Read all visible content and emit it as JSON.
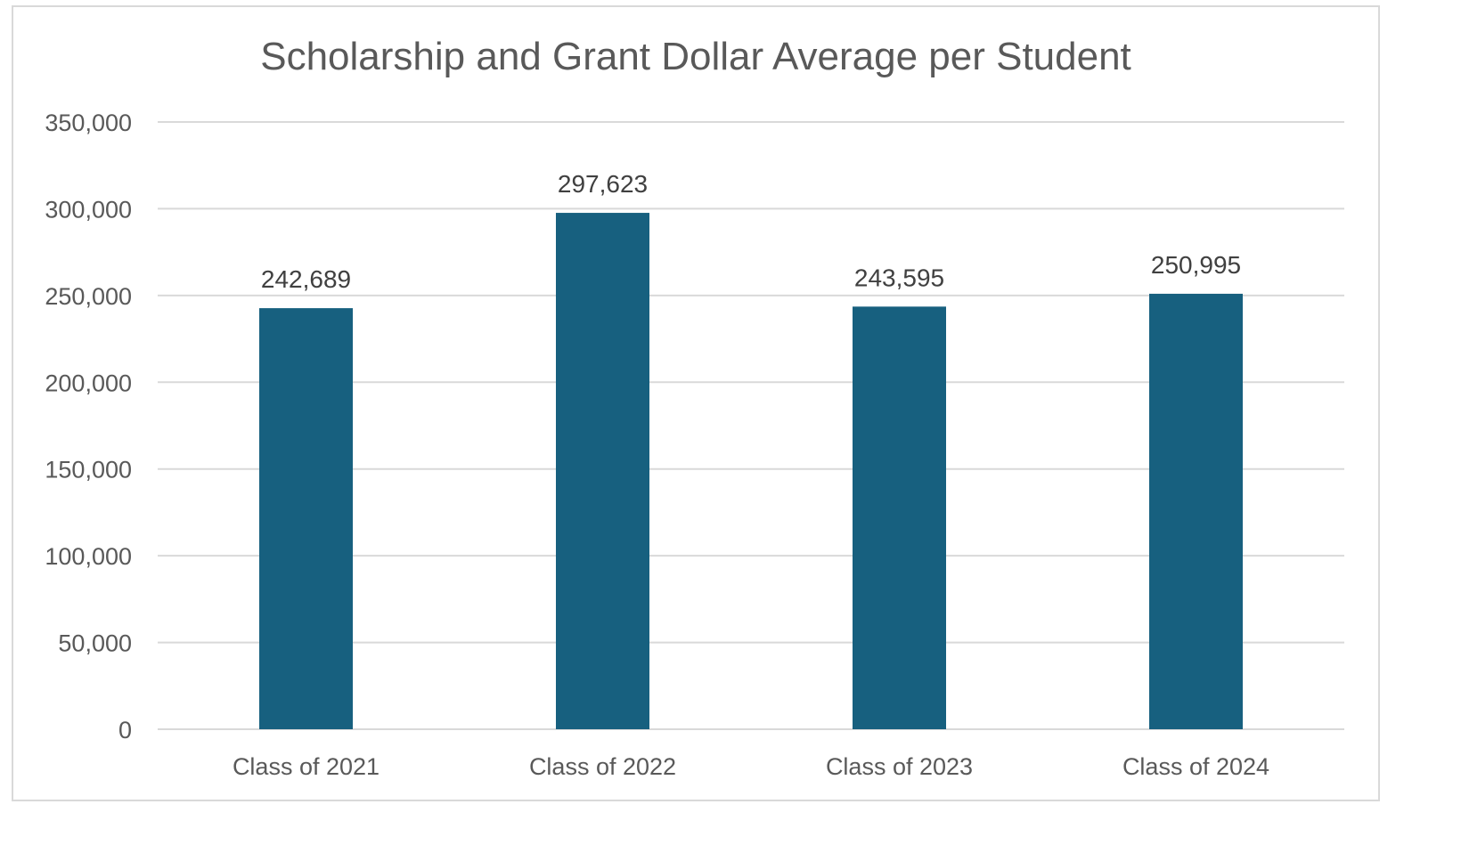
{
  "chart_data": {
    "type": "bar",
    "title": "Scholarship and Grant Dollar Average per Student",
    "categories": [
      "Class of 2021",
      "Class of 2022",
      "Class of 2023",
      "Class of 2024"
    ],
    "values": [
      242689,
      297623,
      243595,
      250995
    ],
    "data_labels": [
      "242,689",
      "297,623",
      "243,595",
      "250,995"
    ],
    "ylim": [
      0,
      350000
    ],
    "yticks": [
      0,
      50000,
      100000,
      150000,
      200000,
      250000,
      300000,
      350000
    ],
    "ytick_labels": [
      "0",
      "50,000",
      "100,000",
      "150,000",
      "200,000",
      "250,000",
      "300,000",
      "350,000"
    ],
    "grid": true,
    "legend": "none",
    "bar_color": "#17607f"
  }
}
